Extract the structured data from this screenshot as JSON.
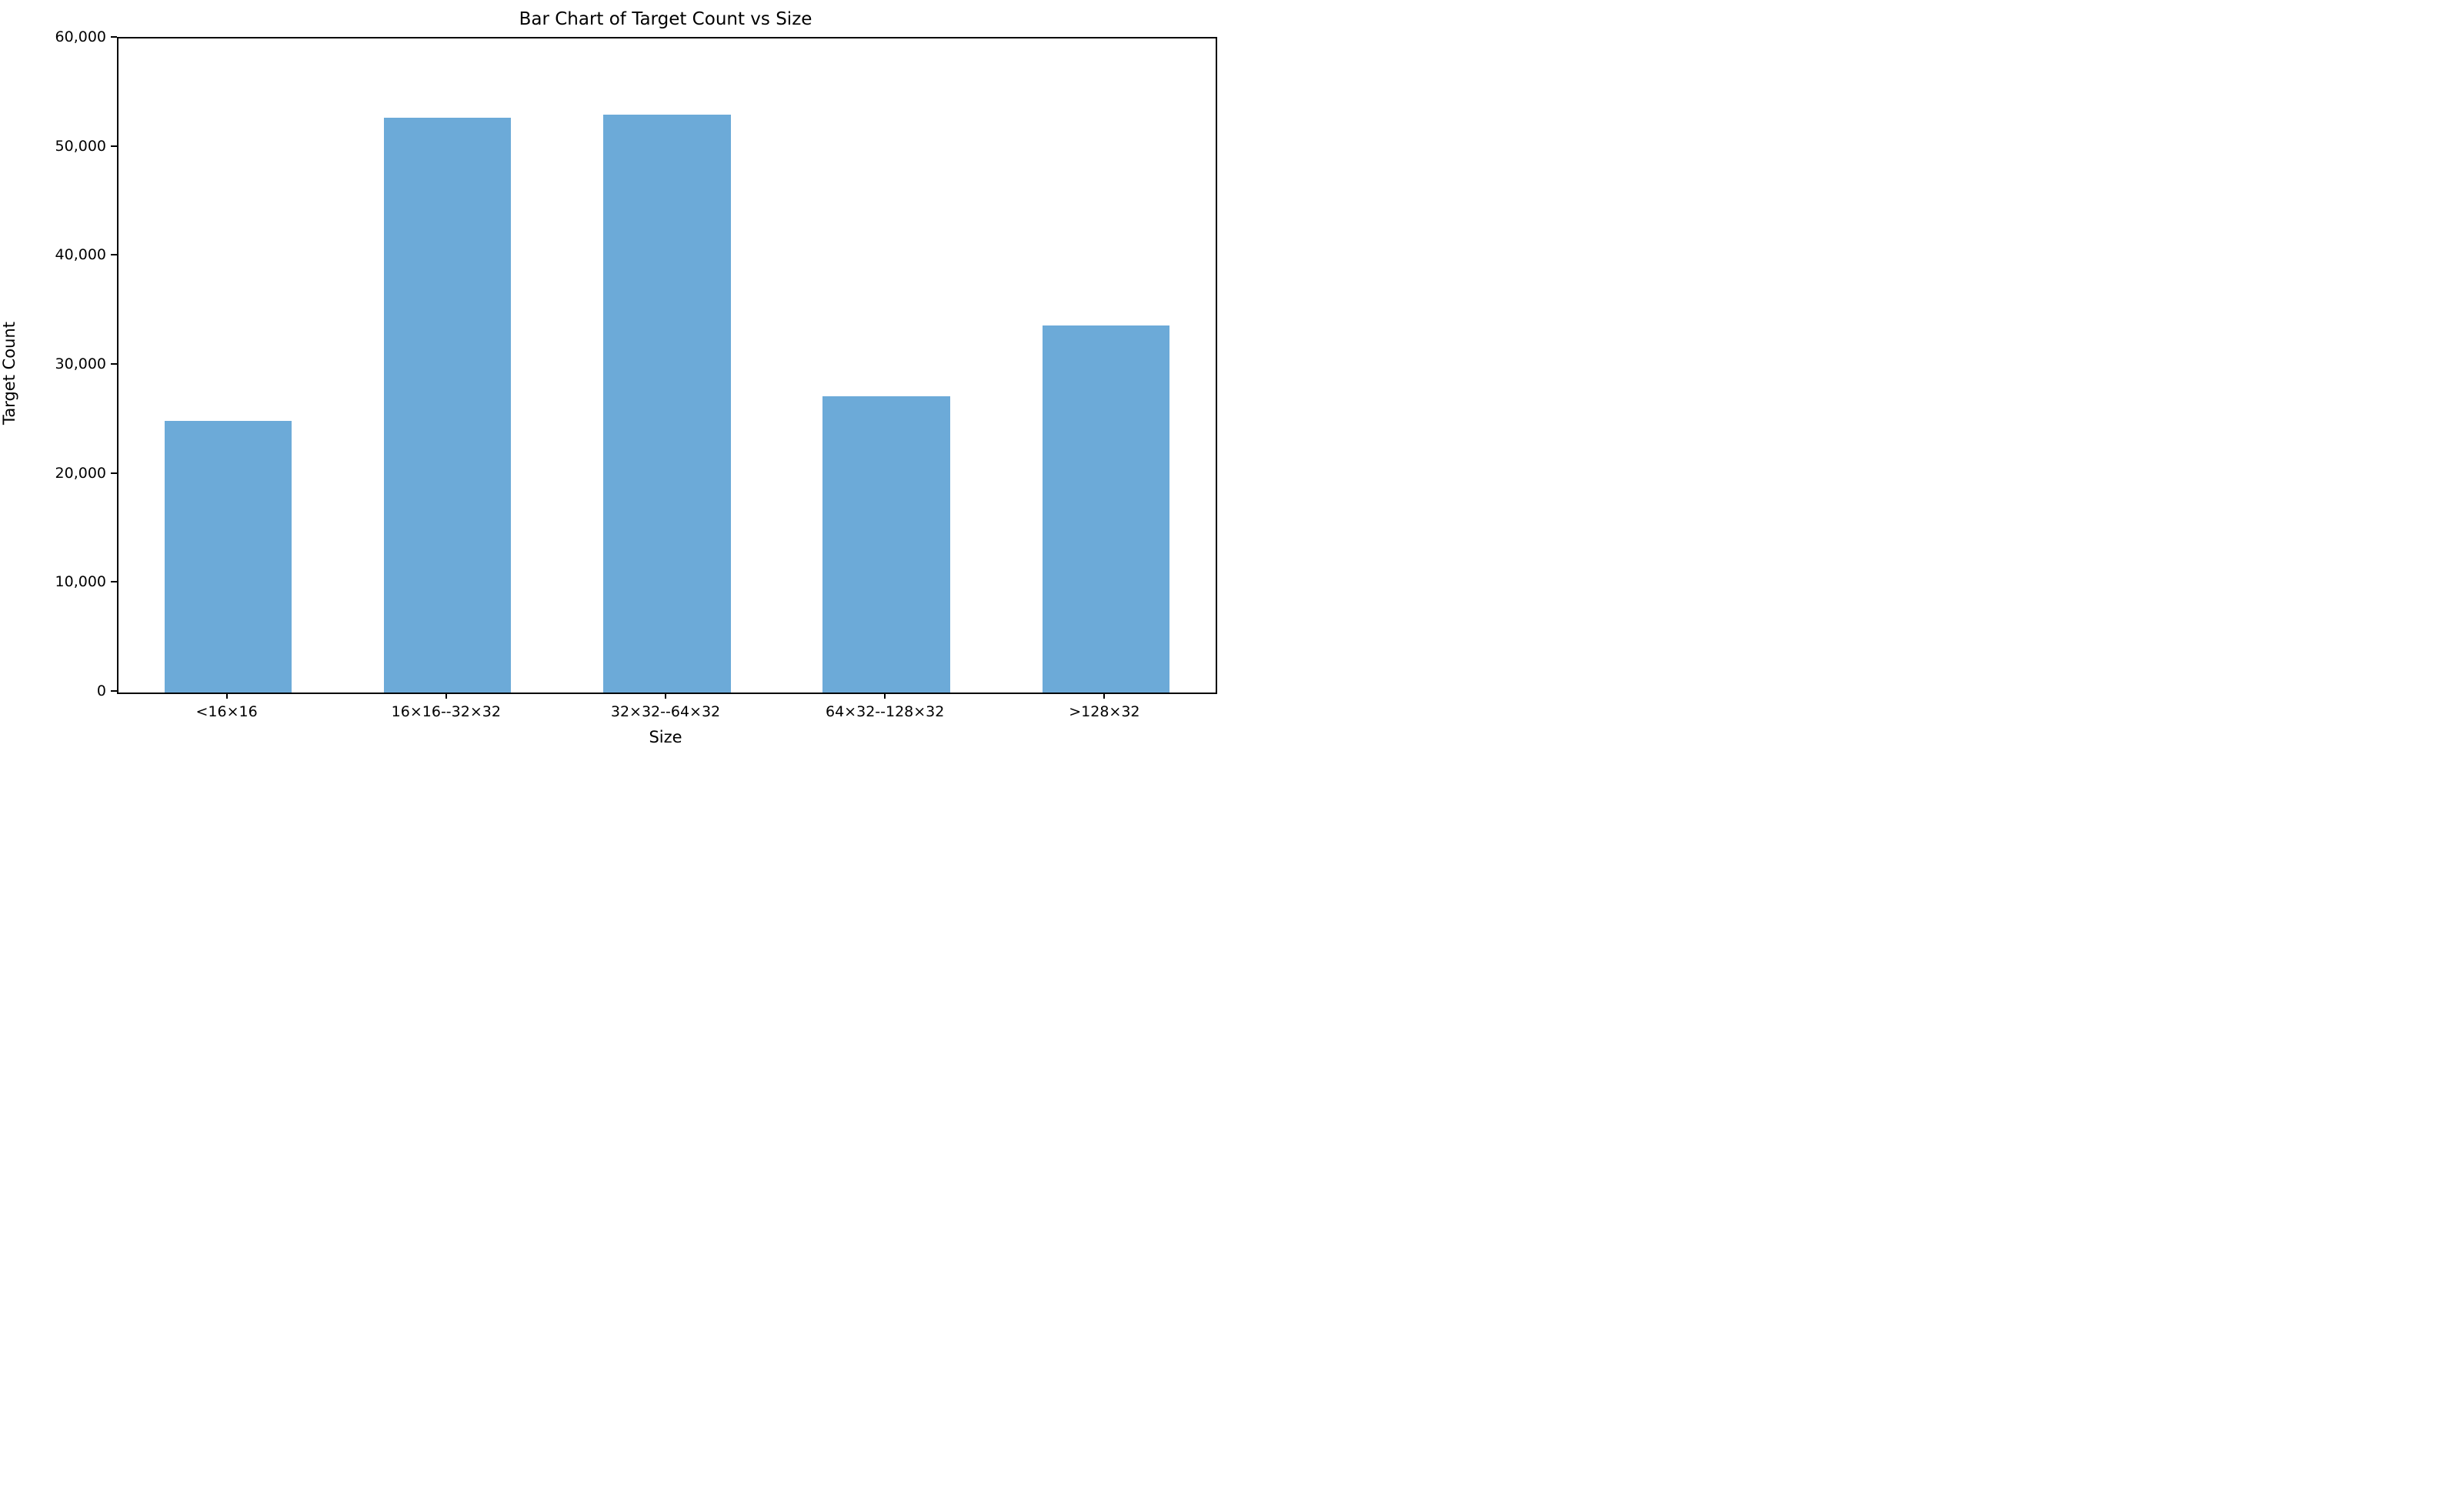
{
  "figure": {
    "background_color": "#ffffff",
    "text_color": "#000000",
    "spine_color": "#000000"
  },
  "chart_data": {
    "type": "bar",
    "title": "Bar Chart of Target Count vs Size",
    "xlabel": "Size",
    "ylabel": "Target Count",
    "categories": [
      "<16×16",
      "16×16--32×32",
      "32×32--64×32",
      "64×32--128×32",
      ">128×32"
    ],
    "values": [
      24900,
      52700,
      53000,
      27200,
      33700
    ],
    "bar_color": "#6CAAD8",
    "ylim": [
      0,
      60000
    ],
    "yticks": [
      {
        "value": 0,
        "label": "0"
      },
      {
        "value": 10000,
        "label": "10,000"
      },
      {
        "value": 20000,
        "label": "20,000"
      },
      {
        "value": 30000,
        "label": "30,000"
      },
      {
        "value": 40000,
        "label": "40,000"
      },
      {
        "value": 50000,
        "label": "50,000"
      },
      {
        "value": 60000,
        "label": "60,000"
      }
    ],
    "grid": false,
    "legend": null
  }
}
